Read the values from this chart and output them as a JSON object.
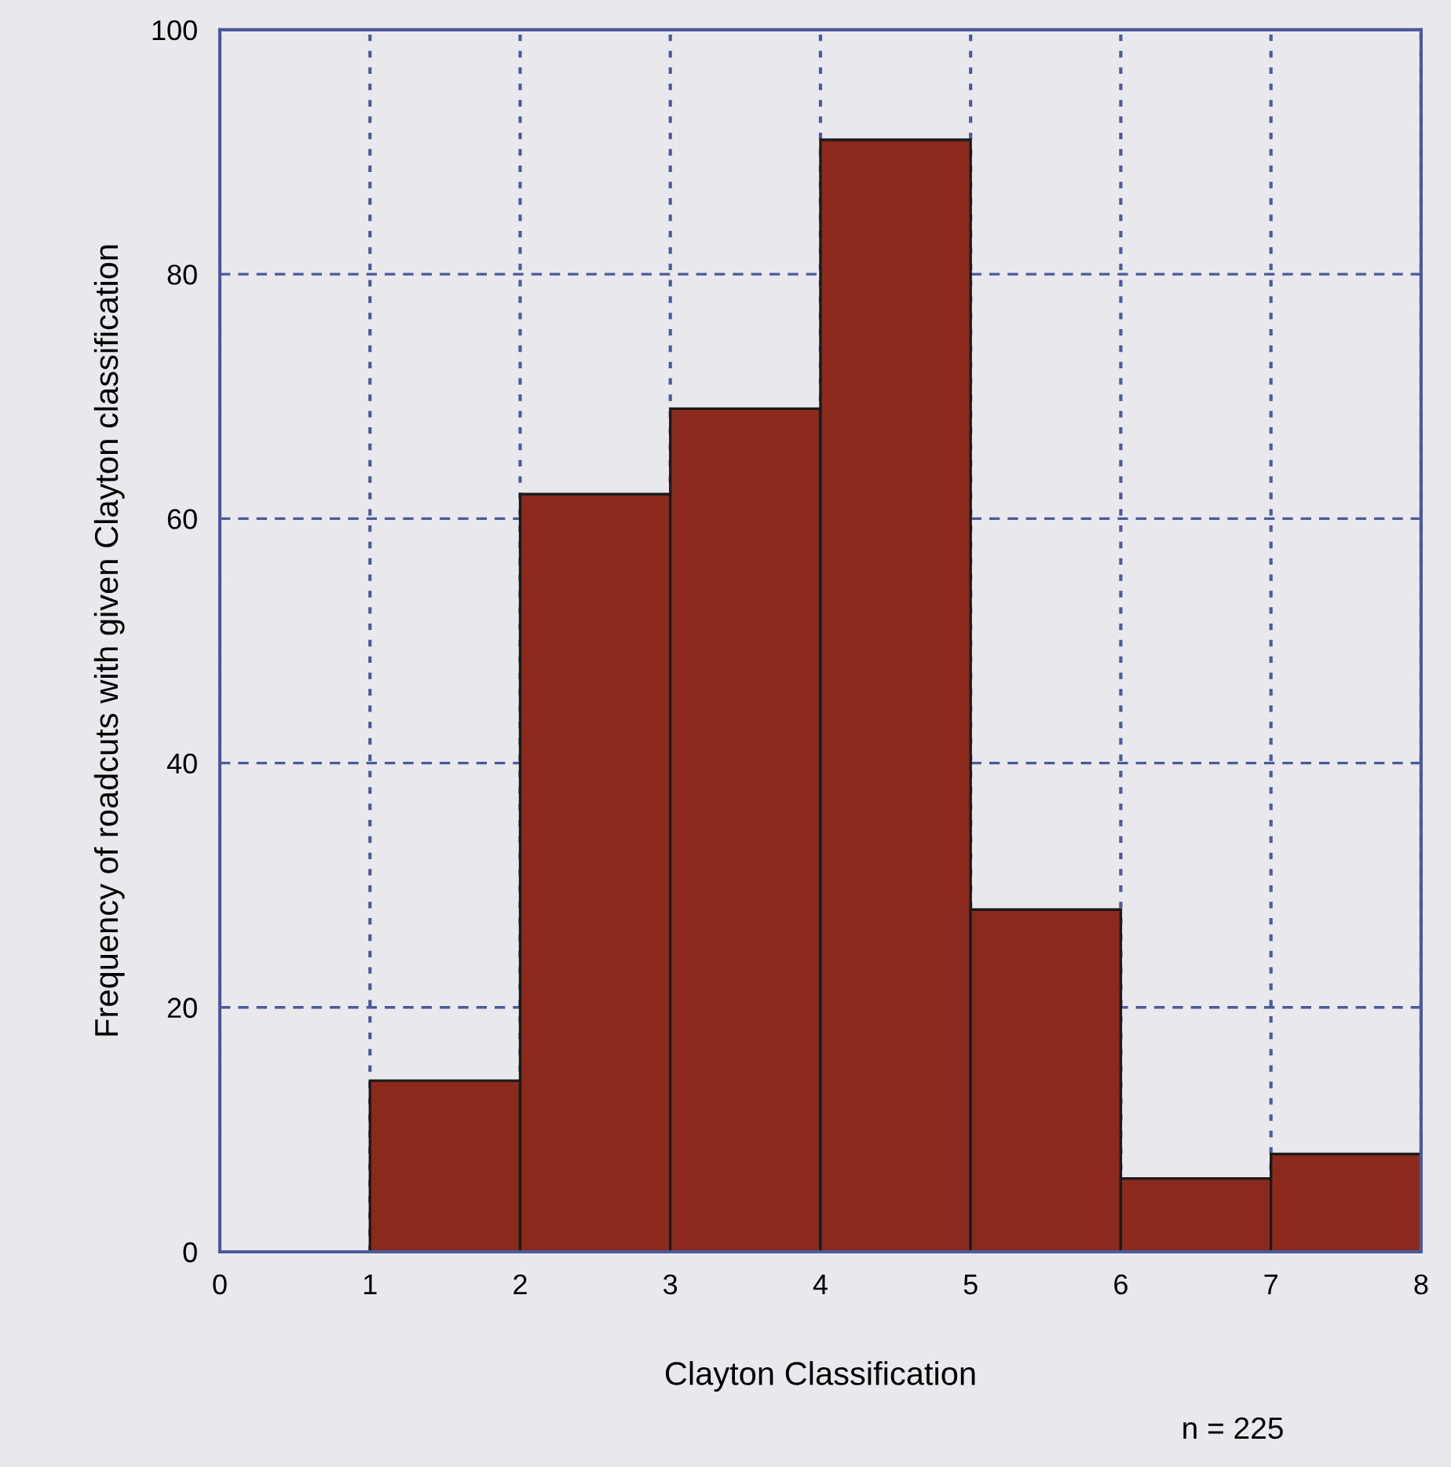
{
  "chart_data": {
    "type": "histogram",
    "xlabel": "Clayton Classification",
    "ylabel": "Frequency of roadcuts with given Clayton classification",
    "bins": [
      1,
      2,
      3,
      4,
      5,
      6,
      7,
      8
    ],
    "values": [
      14,
      62,
      69,
      91,
      28,
      6,
      8
    ],
    "color": "#8b2a1c",
    "xlim": [
      0,
      8
    ],
    "xticks": [
      0,
      1,
      2,
      3,
      4,
      5,
      6,
      7,
      8
    ],
    "ylim": [
      0,
      100
    ],
    "yticks": [
      0,
      20,
      40,
      60,
      80,
      100
    ],
    "grid": true,
    "annotations": [
      "n = 225"
    ]
  }
}
